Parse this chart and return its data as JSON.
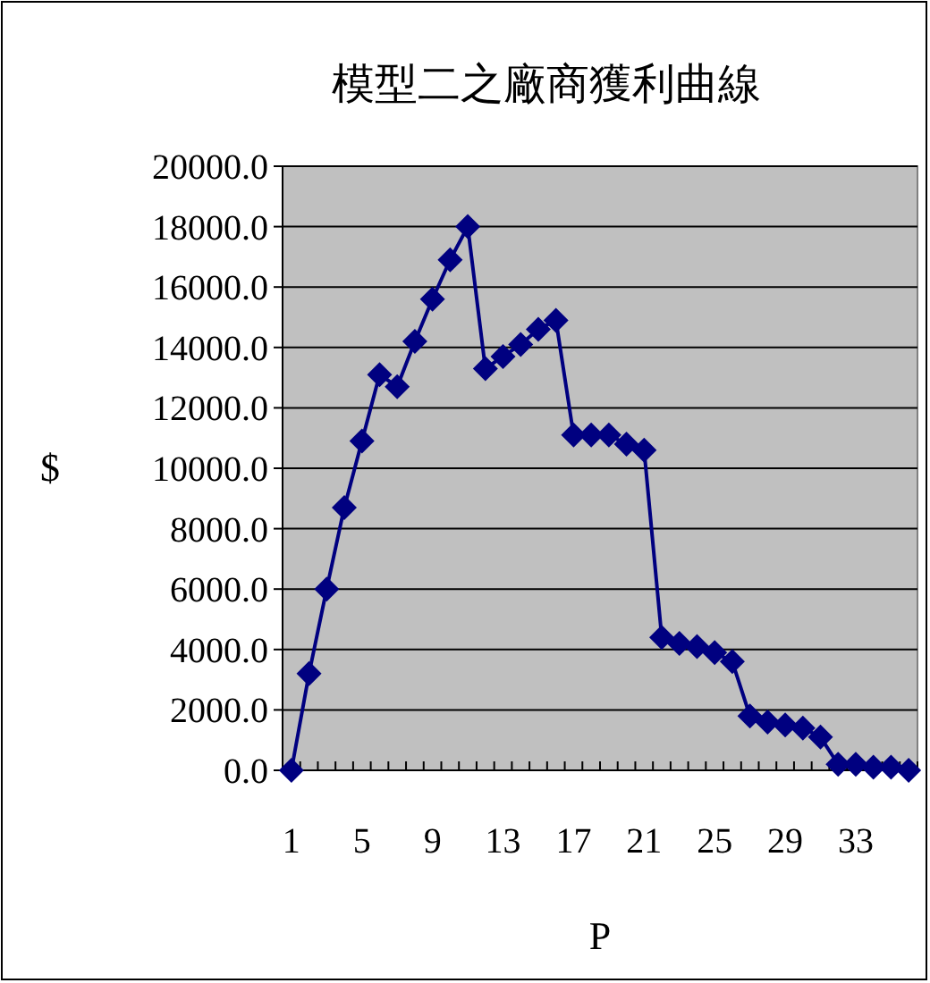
{
  "chart_data": {
    "type": "line",
    "title": "模型二之廠商獲利曲線",
    "xlabel": "P",
    "ylabel": "$",
    "categories": [
      "1",
      null,
      null,
      null,
      "5",
      null,
      null,
      null,
      "9",
      null,
      null,
      null,
      "13",
      null,
      null,
      null,
      "17",
      null,
      null,
      null,
      "21",
      null,
      null,
      null,
      "25",
      null,
      null,
      null,
      "29",
      null,
      null,
      null,
      "33",
      null,
      null,
      null
    ],
    "series": [
      {
        "color": "#000080",
        "values": [
          0,
          3200,
          6000,
          8700,
          10900,
          13100,
          12700,
          14200,
          15600,
          16900,
          18000,
          13300,
          13700,
          14100,
          14600,
          14900,
          11100,
          11100,
          11100,
          10800,
          10600,
          4400,
          4200,
          4100,
          3900,
          3600,
          1800,
          1600,
          1500,
          1400,
          1100,
          200,
          200,
          100,
          100,
          0
        ]
      }
    ],
    "ylim": [
      0,
      20000
    ],
    "yticks": [
      {
        "value": 0,
        "label": "0.0"
      },
      {
        "value": 2000,
        "label": "2000.0"
      },
      {
        "value": 4000,
        "label": "4000.0"
      },
      {
        "value": 6000,
        "label": "6000.0"
      },
      {
        "value": 8000,
        "label": "8000.0"
      },
      {
        "value": 10000,
        "label": "10000.0"
      },
      {
        "value": 12000,
        "label": "12000.0"
      },
      {
        "value": 14000,
        "label": "14000.0"
      },
      {
        "value": 16000,
        "label": "16000.0"
      },
      {
        "value": 18000,
        "label": "18000.0"
      },
      {
        "value": 20000,
        "label": "20000.0"
      }
    ],
    "grid": "y",
    "marker": "diamond"
  }
}
